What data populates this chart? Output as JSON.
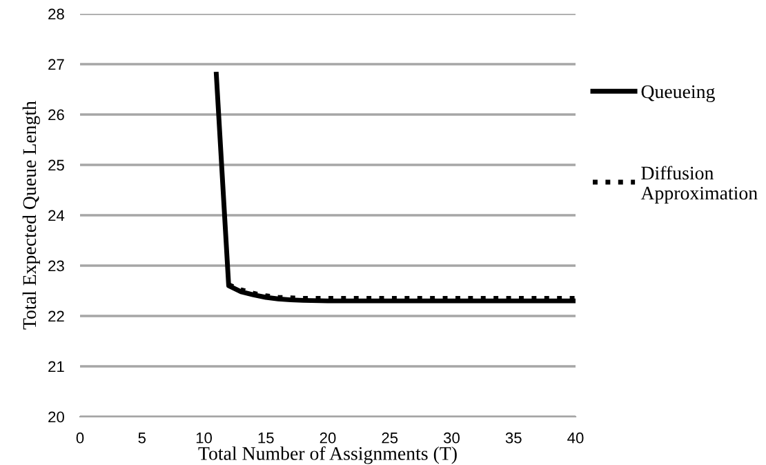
{
  "chart_data": {
    "type": "line",
    "xlabel": "Total Number of Assignments (T)",
    "ylabel": "Total Expected Queue Length",
    "xlim": [
      0,
      40
    ],
    "xticks": [
      0,
      5,
      10,
      15,
      20,
      25,
      30,
      35,
      40
    ],
    "ylim": [
      20,
      28
    ],
    "yticks": [
      20,
      21,
      22,
      23,
      24,
      25,
      26,
      27,
      28
    ],
    "grid": "y",
    "legend": "right",
    "marker": "none",
    "series": [
      {
        "name": "Queueing",
        "color": "#000000",
        "line_style": "solid",
        "x": [
          11,
          12,
          13,
          14,
          15,
          16,
          17,
          18,
          20,
          25,
          30,
          35,
          40
        ],
        "values": [
          26.8,
          22.6,
          22.48,
          22.42,
          22.37,
          22.34,
          22.32,
          22.31,
          22.3,
          22.3,
          22.3,
          22.3,
          22.3
        ]
      },
      {
        "name": "Diffusion Approximation",
        "color": "#000000",
        "line_style": "dotted",
        "x": [
          12,
          13,
          14,
          15,
          16,
          17,
          18,
          20,
          25,
          30,
          35,
          40
        ],
        "values": [
          22.62,
          22.52,
          22.45,
          22.4,
          22.37,
          22.36,
          22.35,
          22.35,
          22.35,
          22.35,
          22.35,
          22.35
        ]
      }
    ]
  }
}
